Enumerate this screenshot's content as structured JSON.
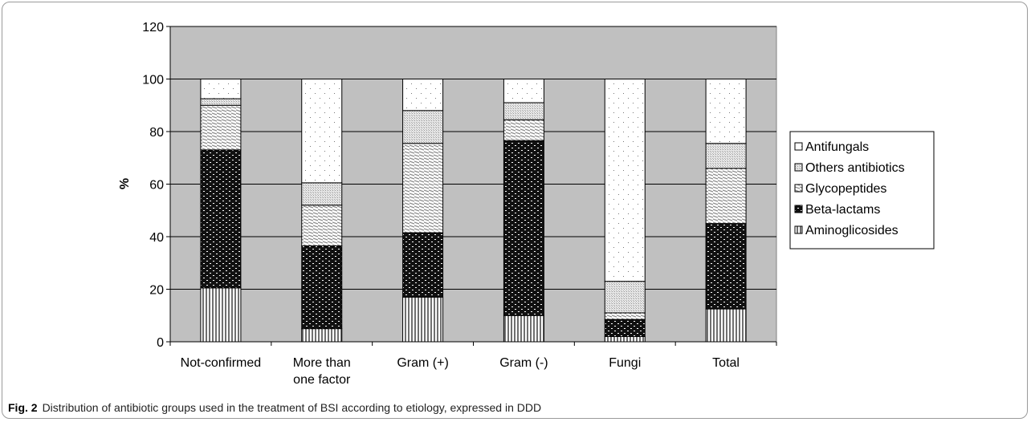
{
  "chart_data": {
    "type": "bar",
    "stacked": true,
    "categories": [
      "Not-confirmed",
      "More than one factor",
      "Gram (+)",
      "Gram (-)",
      "Fungi",
      "Total"
    ],
    "category_lines": [
      [
        "Not-confirmed"
      ],
      [
        "More than",
        "one factor"
      ],
      [
        "Gram (+)"
      ],
      [
        "Gram (-)"
      ],
      [
        "Fungi"
      ],
      [
        "Total"
      ]
    ],
    "ylabel": "%",
    "ylim": [
      0,
      120
    ],
    "yticks": [
      0,
      20,
      40,
      60,
      80,
      100,
      120
    ],
    "grid": true,
    "legend_position": "right",
    "series": [
      {
        "name": "Aminoglicosides",
        "values": [
          20.5,
          5,
          17,
          10,
          2,
          12.5
        ],
        "pattern": "vlines"
      },
      {
        "name": "Beta-lactams",
        "values": [
          52.5,
          31.5,
          24.5,
          66.5,
          6.5,
          32.5
        ],
        "pattern": "dense"
      },
      {
        "name": "Glycopeptides",
        "values": [
          17,
          15.5,
          34,
          8,
          2.5,
          21
        ],
        "pattern": "hatch"
      },
      {
        "name": "Others antibiotics",
        "values": [
          2.5,
          8.5,
          12.5,
          6.5,
          12,
          9.5
        ],
        "pattern": "grey"
      },
      {
        "name": "Antifungals",
        "values": [
          7.5,
          39.5,
          12,
          9,
          77,
          24.5
        ],
        "pattern": "dots"
      }
    ]
  },
  "caption": {
    "label": "Fig. 2",
    "text": "Distribution of antibiotic groups used in the treatment of BSI according to etiology, expressed in DDD"
  },
  "colors": {
    "plot_background": "#c0c0c0",
    "bar_border": "#000000"
  }
}
